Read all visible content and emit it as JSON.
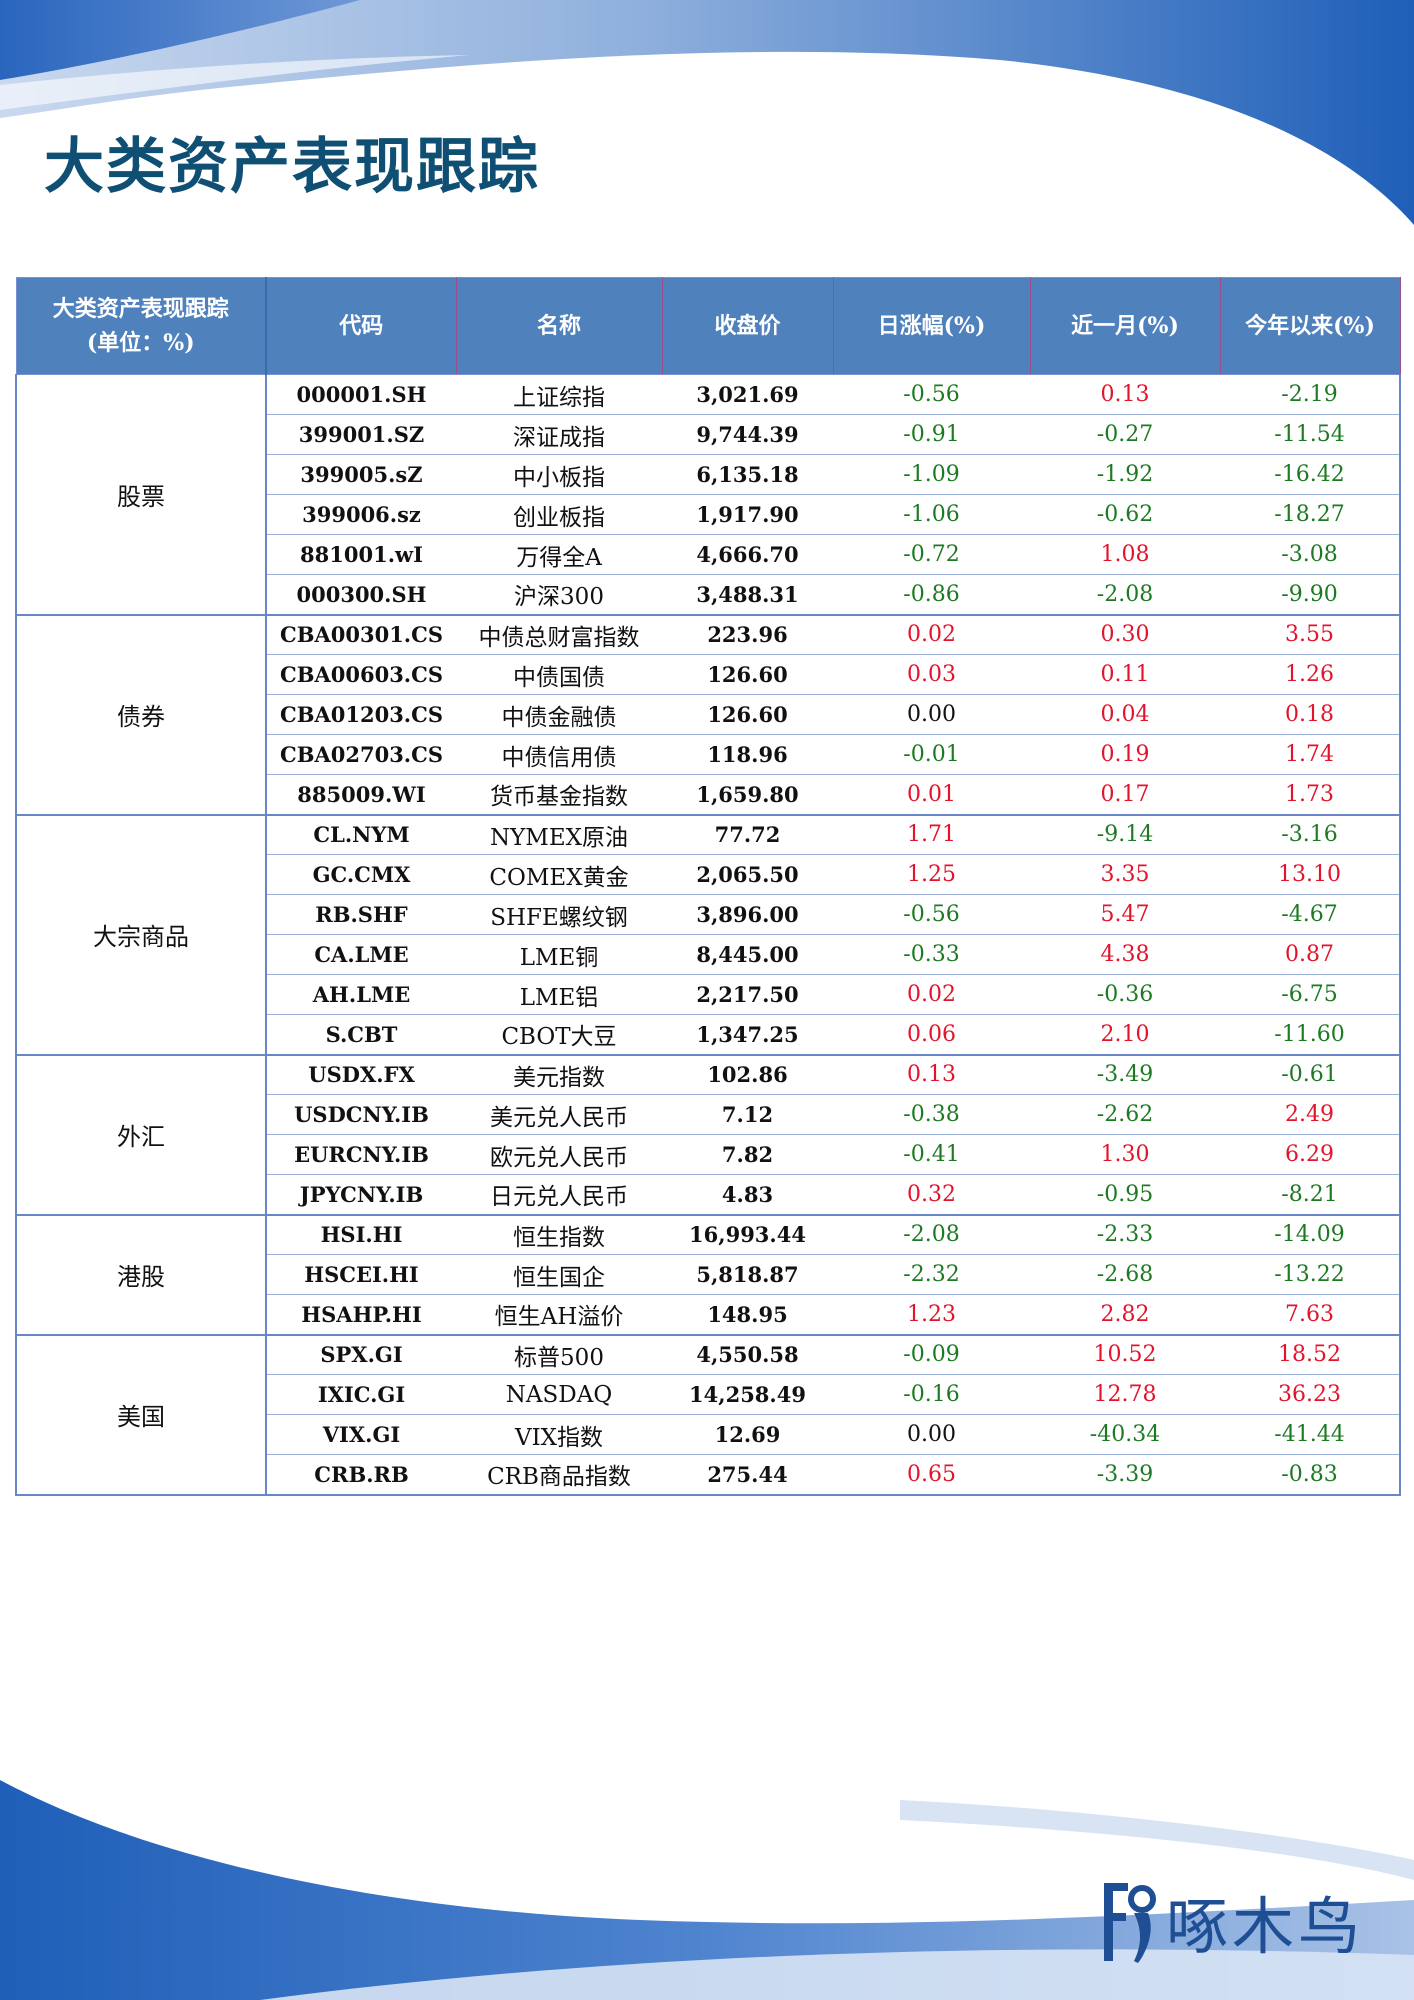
{
  "page": {
    "title": "大类资产表现跟踪",
    "logo_text": "啄木鸟"
  },
  "table": {
    "header_category": [
      "大类资产表现跟踪",
      "(单位：%)"
    ],
    "headers": [
      "代码",
      "名称",
      "收盘价",
      "日涨幅(%)",
      "近一月(%)",
      "今年以来(%)"
    ],
    "groups": [
      {
        "category": "股票",
        "rows": [
          {
            "code": "000001.SH",
            "name": "上证综指",
            "price": "3,021.69",
            "day": "-0.56",
            "month": "0.13",
            "ytd": "-2.19"
          },
          {
            "code": "399001.SZ",
            "name": "深证成指",
            "price": "9,744.39",
            "day": "-0.91",
            "month": "-0.27",
            "ytd": "-11.54"
          },
          {
            "code": "399005.sZ",
            "name": "中小板指",
            "price": "6,135.18",
            "day": "-1.09",
            "month": "-1.92",
            "ytd": "-16.42"
          },
          {
            "code": "399006.sz",
            "name": "创业板指",
            "price": "1,917.90",
            "day": "-1.06",
            "month": "-0.62",
            "ytd": "-18.27"
          },
          {
            "code": "881001.wI",
            "name": "万得全A",
            "price": "4,666.70",
            "day": "-0.72",
            "month": "1.08",
            "ytd": "-3.08"
          },
          {
            "code": "000300.SH",
            "name": "沪深300",
            "price": "3,488.31",
            "day": "-0.86",
            "month": "-2.08",
            "ytd": "-9.90"
          }
        ]
      },
      {
        "category": "债券",
        "rows": [
          {
            "code": "CBA00301.CS",
            "name": "中债总财富指数",
            "price": "223.96",
            "day": "0.02",
            "month": "0.30",
            "ytd": "3.55"
          },
          {
            "code": "CBA00603.CS",
            "name": "中债国债",
            "price": "126.60",
            "day": "0.03",
            "month": "0.11",
            "ytd": "1.26"
          },
          {
            "code": "CBA01203.CS",
            "name": "中债金融债",
            "price": "126.60",
            "day": "0.00",
            "month": "0.04",
            "ytd": "0.18"
          },
          {
            "code": "CBA02703.CS",
            "name": "中债信用债",
            "price": "118.96",
            "day": "-0.01",
            "month": "0.19",
            "ytd": "1.74"
          },
          {
            "code": "885009.WI",
            "name": "货币基金指数",
            "price": "1,659.80",
            "day": "0.01",
            "month": "0.17",
            "ytd": "1.73"
          }
        ]
      },
      {
        "category": "大宗商品",
        "rows": [
          {
            "code": "CL.NYM",
            "name": "NYMEX原油",
            "price": "77.72",
            "day": "1.71",
            "month": "-9.14",
            "ytd": "-3.16"
          },
          {
            "code": "GC.CMX",
            "name": "COMEX黄金",
            "price": "2,065.50",
            "day": "1.25",
            "month": "3.35",
            "ytd": "13.10"
          },
          {
            "code": "RB.SHF",
            "name": "SHFE螺纹钢",
            "price": "3,896.00",
            "day": "-0.56",
            "month": "5.47",
            "ytd": "-4.67"
          },
          {
            "code": "CA.LME",
            "name": "LME铜",
            "price": "8,445.00",
            "day": "-0.33",
            "month": "4.38",
            "ytd": "0.87"
          },
          {
            "code": "AH.LME",
            "name": "LME铝",
            "price": "2,217.50",
            "day": "0.02",
            "month": "-0.36",
            "ytd": "-6.75"
          },
          {
            "code": "S.CBT",
            "name": "CBOT大豆",
            "price": "1,347.25",
            "day": "0.06",
            "month": "2.10",
            "ytd": "-11.60"
          }
        ]
      },
      {
        "category": "外汇",
        "rows": [
          {
            "code": "USDX.FX",
            "name": "美元指数",
            "price": "102.86",
            "day": "0.13",
            "month": "-3.49",
            "ytd": "-0.61"
          },
          {
            "code": "USDCNY.IB",
            "name": "美元兑人民币",
            "price": "7.12",
            "day": "-0.38",
            "month": "-2.62",
            "ytd": "2.49"
          },
          {
            "code": "EURCNY.IB",
            "name": "欧元兑人民币",
            "price": "7.82",
            "day": "-0.41",
            "month": "1.30",
            "ytd": "6.29"
          },
          {
            "code": "JPYCNY.IB",
            "name": "日元兑人民币",
            "price": "4.83",
            "day": "0.32",
            "month": "-0.95",
            "ytd": "-8.21"
          }
        ]
      },
      {
        "category": "港股",
        "rows": [
          {
            "code": "HSI.HI",
            "name": "恒生指数",
            "price": "16,993.44",
            "day": "-2.08",
            "month": "-2.33",
            "ytd": "-14.09"
          },
          {
            "code": "HSCEI.HI",
            "name": "恒生国企",
            "price": "5,818.87",
            "day": "-2.32",
            "month": "-2.68",
            "ytd": "-13.22"
          },
          {
            "code": "HSAHP.HI",
            "name": "恒生AH溢价",
            "price": "148.95",
            "day": "1.23",
            "month": "2.82",
            "ytd": "7.63"
          }
        ]
      },
      {
        "category": "美国",
        "rows": [
          {
            "code": "SPX.GI",
            "name": "标普500",
            "price": "4,550.58",
            "day": "-0.09",
            "month": "10.52",
            "ytd": "18.52"
          },
          {
            "code": "IXIC.GI",
            "name": "NASDAQ",
            "price": "14,258.49",
            "day": "-0.16",
            "month": "12.78",
            "ytd": "36.23"
          },
          {
            "code": "VIX.GI",
            "name": "VIX指数",
            "price": "12.69",
            "day": "0.00",
            "month": "-40.34",
            "ytd": "-41.44"
          },
          {
            "code": "CRB.RB",
            "name": "CRB商品指数",
            "price": "275.44",
            "day": "0.65",
            "month": "-3.39",
            "ytd": "-0.83"
          }
        ]
      }
    ]
  },
  "colors": {
    "up": "#e2142b",
    "down": "#1d7a23",
    "flat": "#111111",
    "header_bg": "#4f81bd",
    "title": "#0f4f73",
    "brand": "#1e4f95"
  }
}
